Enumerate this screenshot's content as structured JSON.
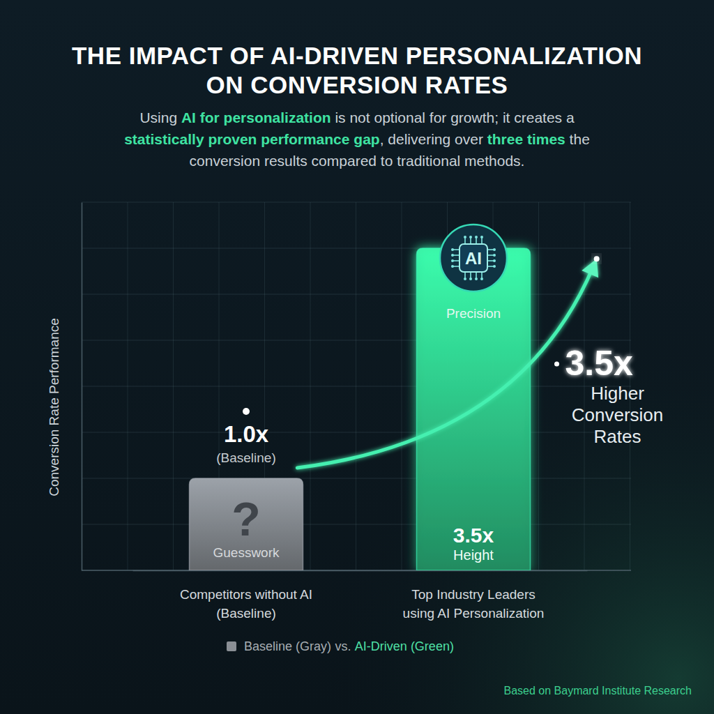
{
  "chart_data": {
    "type": "bar",
    "title": "THE IMPACT OF AI-DRIVEN PERSONALIZATION ON CONVERSION RATES",
    "subtitle": [
      "Using AI for personalization is not optional for growth; it creates a",
      "statistically proven performance gap, delivering over three times the",
      "conversion results compared to traditional methods."
    ],
    "subtitle_highlights": [
      "AI for personalization",
      "statistically proven performance gap",
      "three times"
    ],
    "y_label": "Conversion Rate Performance",
    "categories": [
      "Competitors without AI (Baseline)",
      "Top Industry Leaders using AI Personalization"
    ],
    "values": [
      1.0,
      3.5
    ],
    "value_labels": [
      "1.0x",
      "3.5x"
    ],
    "data_labels": true,
    "colors": [
      "#8a8f95",
      "#34e09a"
    ],
    "ylim": [
      0,
      4
    ],
    "yticks": [
      0,
      0.5,
      1,
      1.5,
      2,
      2.5,
      3,
      3.5,
      4
    ],
    "grid": true,
    "tick_labels": "x",
    "legend": "bottom",
    "legend_labels": [
      "Baseline (Gray)",
      "AI-Driven (Green)"
    ],
    "legend_separator": "vs.",
    "annotations": {
      "baseline_note": "(Baseline)",
      "bar_notes": [
        "Guesswork",
        "Precision"
      ],
      "bar_icons": [
        "?",
        "AI"
      ],
      "height_caption": "Height",
      "callout_value": "3.5x",
      "callout_text": "Higher Conversion Rates"
    },
    "source": "Based on Baymard Institute Research"
  }
}
